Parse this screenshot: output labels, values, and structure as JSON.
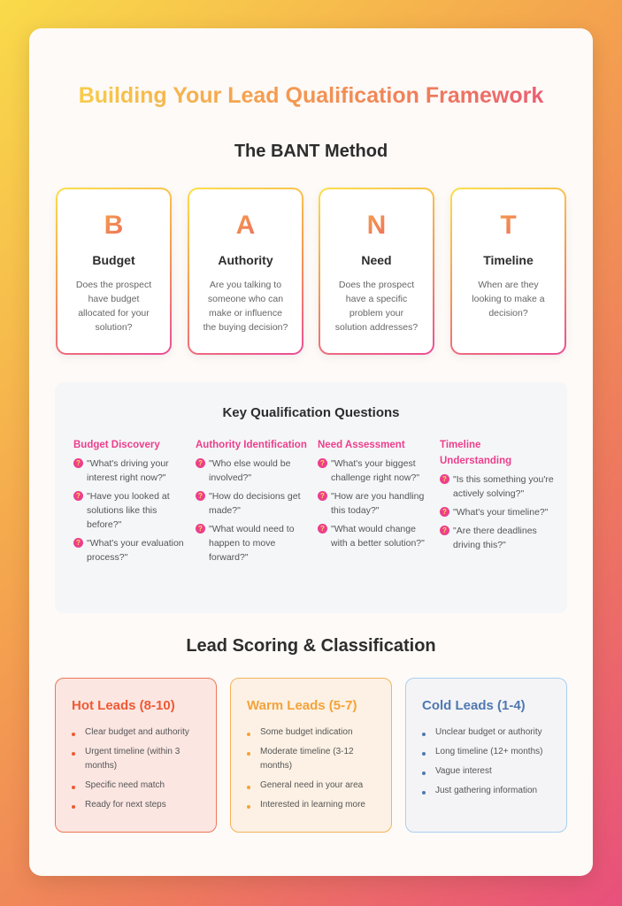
{
  "title": "Building Your Lead Qualification Framework",
  "bant": {
    "heading": "The BANT Method",
    "items": [
      {
        "letter": "B",
        "name": "Budget",
        "desc": "Does the prospect have budget allocated for your solution?"
      },
      {
        "letter": "A",
        "name": "Authority",
        "desc": "Are you talking to someone who can make or influence the buying decision?"
      },
      {
        "letter": "N",
        "name": "Need",
        "desc": "Does the prospect have a specific problem your solution addresses?"
      },
      {
        "letter": "T",
        "name": "Timeline",
        "desc": "When are they looking to make a decision?"
      }
    ]
  },
  "questions": {
    "heading": "Key Qualification Questions",
    "icon": "question-icon",
    "columns": [
      {
        "title": "Budget Discovery",
        "items": [
          "\"What's driving your interest right now?\"",
          "\"Have you looked at solutions like this before?\"",
          "\"What's your evaluation process?\""
        ]
      },
      {
        "title": "Authority Identification",
        "items": [
          "\"Who else would be involved?\"",
          "\"How do decisions get made?\"",
          "\"What would need to happen to move forward?\""
        ]
      },
      {
        "title": "Need Assessment",
        "items": [
          "\"What's your biggest challenge right now?\"",
          "\"How are you handling this today?\"",
          "\"What would change with a better solution?\""
        ]
      },
      {
        "title": "Timeline Understanding",
        "items": [
          "\"Is this something you're actively solving?\"",
          "\"What's your timeline?\"",
          "\"Are there deadlines driving this?\""
        ]
      }
    ]
  },
  "scoring": {
    "heading": "Lead Scoring & Classification",
    "groups": [
      {
        "title": "Hot Leads (8-10)",
        "color": "#ee5a33",
        "bg": "#fbe6e2",
        "border": "#ef7656",
        "items": [
          "Clear budget and authority",
          "Urgent timeline (within 3 months)",
          "Specific need match",
          "Ready for next steps"
        ]
      },
      {
        "title": "Warm Leads (5-7)",
        "color": "#f4a23a",
        "bg": "#fcf1e4",
        "border": "#f5b35a",
        "items": [
          "Some budget indication",
          "Moderate timeline (3-12 months)",
          "General need in your area",
          "Interested in learning more"
        ]
      },
      {
        "title": "Cold Leads (1-4)",
        "color": "#4f79b0",
        "bg": "#f4f4f7",
        "border": "#a9d0ee",
        "items": [
          "Unclear budget or authority",
          "Long timeline (12+ months)",
          "Vague interest",
          "Just gathering information"
        ]
      }
    ]
  }
}
